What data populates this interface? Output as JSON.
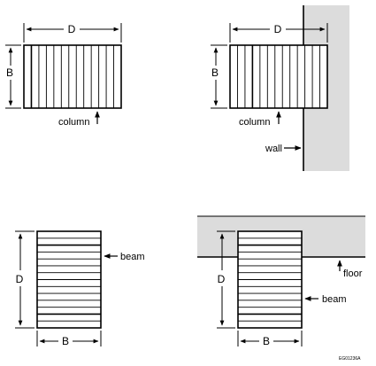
{
  "colors": {
    "line": "#000000",
    "shade": "#dcdcdc",
    "background": "#ffffff"
  },
  "figures": {
    "top_left": {
      "dim_width": "D",
      "dim_height": "B",
      "callout": "column"
    },
    "top_right": {
      "dim_width": "D",
      "dim_height": "B",
      "callout_column": "column",
      "callout_wall": "wall"
    },
    "bottom_left": {
      "dim_height": "D",
      "dim_width": "B",
      "callout": "beam"
    },
    "bottom_right": {
      "dim_height": "D",
      "dim_width": "B",
      "callout_floor": "floor",
      "callout_beam": "beam"
    }
  },
  "figure_code": "EG01236A"
}
